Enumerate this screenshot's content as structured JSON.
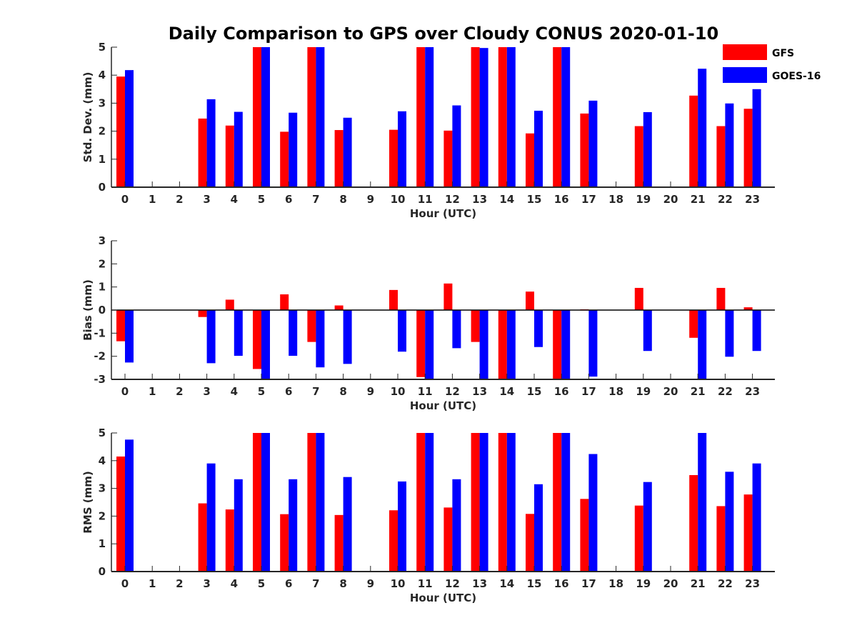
{
  "title": "Daily Comparison to GPS over Cloudy CONUS 2020-01-10",
  "colors": {
    "GFS": "#ff0000",
    "GOES-16": "#0000ff"
  },
  "legend": {
    "placement": "top-right",
    "entries": [
      "GFS",
      "GOES-16"
    ]
  },
  "chart_data": [
    {
      "type": "bar",
      "ylabel": "Std. Dev. (mm)",
      "xlabel": "Hour (UTC)",
      "ylim": [
        0,
        5
      ],
      "yticks": [
        0,
        1,
        2,
        3,
        4,
        5
      ],
      "categories": [
        "0",
        "1",
        "2",
        "3",
        "4",
        "5",
        "6",
        "7",
        "8",
        "9",
        "10",
        "11",
        "12",
        "13",
        "14",
        "15",
        "16",
        "17",
        "18",
        "19",
        "20",
        "21",
        "22",
        "23"
      ],
      "series": [
        {
          "name": "GFS",
          "values": [
            3.95,
            null,
            null,
            2.45,
            2.2,
            5,
            1.98,
            5,
            2.04,
            null,
            2.05,
            5,
            2.02,
            5,
            5,
            1.92,
            5,
            2.63,
            null,
            2.18,
            null,
            3.27,
            2.18,
            2.8
          ]
        },
        {
          "name": "GOES-16",
          "values": [
            4.18,
            null,
            null,
            3.14,
            2.69,
            5,
            2.66,
            5,
            2.48,
            null,
            2.71,
            5,
            2.92,
            4.97,
            5,
            2.73,
            5,
            3.09,
            null,
            2.68,
            null,
            4.23,
            2.99,
            3.5
          ]
        }
      ]
    },
    {
      "type": "bar",
      "ylabel": "Bias (mm)",
      "xlabel": "Hour (UTC)",
      "ylim": [
        -3,
        3
      ],
      "yticks": [
        -3,
        -2,
        -1,
        0,
        1,
        2,
        3
      ],
      "categories": [
        "0",
        "1",
        "2",
        "3",
        "4",
        "5",
        "6",
        "7",
        "8",
        "9",
        "10",
        "11",
        "12",
        "13",
        "14",
        "15",
        "16",
        "17",
        "18",
        "19",
        "20",
        "21",
        "22",
        "23"
      ],
      "series": [
        {
          "name": "GFS",
          "values": [
            -1.35,
            null,
            null,
            -0.3,
            0.45,
            -2.55,
            0.68,
            -1.38,
            0.2,
            null,
            0.87,
            -2.9,
            1.15,
            -1.38,
            -3,
            0.8,
            -3,
            0.03,
            null,
            0.96,
            null,
            -1.2,
            0.96,
            0.12
          ]
        },
        {
          "name": "GOES-16",
          "values": [
            -2.27,
            null,
            null,
            -2.3,
            -1.98,
            -3,
            -1.98,
            -2.48,
            -2.33,
            null,
            -1.8,
            -3,
            -1.65,
            -3,
            -3,
            -1.6,
            -3,
            -2.88,
            null,
            -1.77,
            null,
            -3,
            -2.02,
            -1.77
          ]
        }
      ]
    },
    {
      "type": "bar",
      "ylabel": "RMS (mm)",
      "xlabel": "Hour (UTC)",
      "ylim": [
        0,
        5
      ],
      "yticks": [
        0,
        1,
        2,
        3,
        4,
        5
      ],
      "categories": [
        "0",
        "1",
        "2",
        "3",
        "4",
        "5",
        "6",
        "7",
        "8",
        "9",
        "10",
        "11",
        "12",
        "13",
        "14",
        "15",
        "16",
        "17",
        "18",
        "19",
        "20",
        "21",
        "22",
        "23"
      ],
      "series": [
        {
          "name": "GFS",
          "values": [
            4.15,
            null,
            null,
            2.46,
            2.24,
            5,
            2.07,
            5,
            2.04,
            null,
            2.21,
            5,
            2.31,
            5,
            5,
            2.08,
            5,
            2.62,
            null,
            2.38,
            null,
            3.48,
            2.36,
            2.78
          ]
        },
        {
          "name": "GOES-16",
          "values": [
            4.76,
            null,
            null,
            3.9,
            3.33,
            5,
            3.33,
            5,
            3.41,
            null,
            3.25,
            5,
            3.33,
            5,
            5,
            3.15,
            5,
            4.24,
            null,
            3.23,
            null,
            5,
            3.6,
            3.9
          ]
        }
      ]
    }
  ]
}
